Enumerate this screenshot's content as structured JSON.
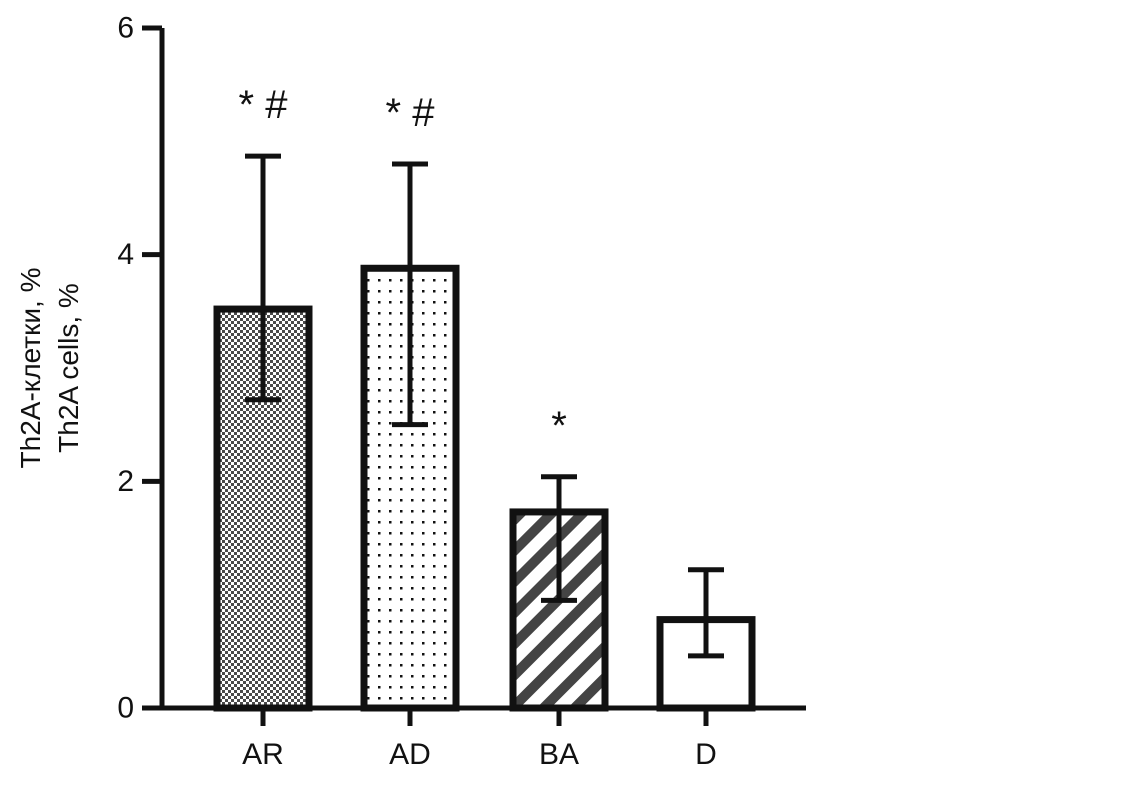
{
  "chart_data": {
    "type": "bar",
    "categories": [
      "AR",
      "AD",
      "BA",
      "D"
    ],
    "values": [
      3.52,
      3.88,
      1.73,
      0.78
    ],
    "error_upper": [
      4.87,
      4.8,
      2.04,
      1.22
    ],
    "error_lower": [
      2.72,
      2.5,
      0.95,
      0.46
    ],
    "annotations": [
      "* #",
      "* #",
      "*",
      ""
    ],
    "ylabel_lines": [
      "Th2A-клетки, %",
      "Th2A cells, %"
    ],
    "xlabel": "",
    "ylim": [
      0,
      6
    ],
    "yticks": [
      0,
      2,
      4,
      6
    ],
    "patterns": [
      "checker",
      "dots",
      "stripes",
      "none"
    ],
    "colors": {
      "stroke": "#111111",
      "fill": "#ffffff",
      "pattern": "#333333"
    },
    "grid": false,
    "legend": "none"
  }
}
